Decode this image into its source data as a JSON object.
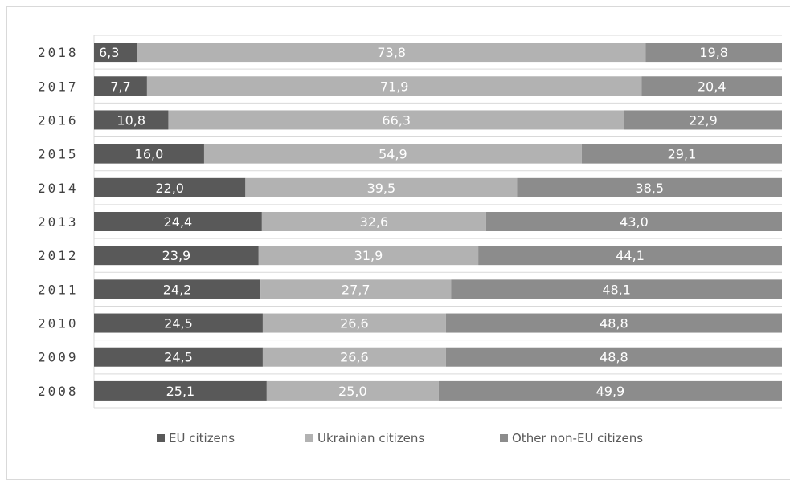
{
  "chart_data": {
    "type": "bar",
    "orientation": "horizontal",
    "stacked": true,
    "percent_stacked": true,
    "categories": [
      "2018",
      "2017",
      "2016",
      "2015",
      "2014",
      "2013",
      "2012",
      "2011",
      "2010",
      "2009",
      "2008"
    ],
    "series": [
      {
        "name": "EU citizens",
        "color": "#595959",
        "values": [
          6.3,
          7.7,
          10.8,
          16.0,
          22.0,
          24.4,
          23.9,
          24.2,
          24.5,
          24.5,
          25.1
        ],
        "labels": [
          "6,3",
          "7,7",
          "10,8",
          "16,0",
          "22,0",
          "24,4",
          "23,9",
          "24,2",
          "24,5",
          "24,5",
          "25,1"
        ]
      },
      {
        "name": "Ukrainian citizens",
        "color": "#b2b2b2",
        "values": [
          73.8,
          71.9,
          66.3,
          54.9,
          39.5,
          32.6,
          31.9,
          27.7,
          26.6,
          26.6,
          25.0
        ],
        "labels": [
          "73,8",
          "71,9",
          "66,3",
          "54,9",
          "39,5",
          "32,6",
          "31,9",
          "27,7",
          "26,6",
          "26,6",
          "25,0"
        ]
      },
      {
        "name": "Other non-EU citizens",
        "color": "#8c8c8c",
        "values": [
          19.8,
          20.4,
          22.9,
          29.1,
          38.5,
          43.0,
          44.1,
          48.1,
          48.8,
          48.8,
          49.9
        ],
        "labels": [
          "19,8",
          "20,4",
          "22,9",
          "29,1",
          "38,5",
          "43,0",
          "44,1",
          "48,1",
          "48,8",
          "48,8",
          "49,9"
        ]
      }
    ],
    "xlim": [
      0,
      100
    ],
    "title": "",
    "xlabel": "",
    "ylabel": "",
    "grid": true,
    "legend_position": "bottom"
  }
}
